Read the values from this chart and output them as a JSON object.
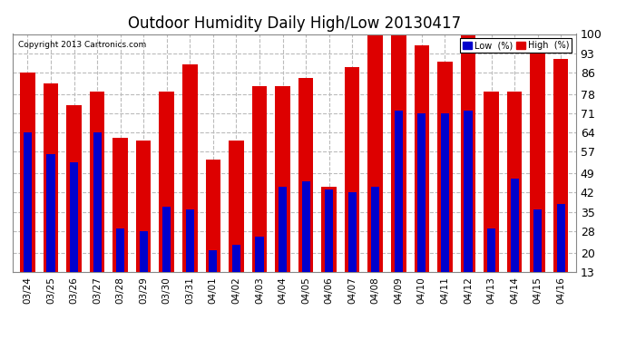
{
  "title": "Outdoor Humidity Daily High/Low 20130417",
  "copyright": "Copyright 2013 Cartronics.com",
  "labels": [
    "03/24",
    "03/25",
    "03/26",
    "03/27",
    "03/28",
    "03/29",
    "03/30",
    "03/31",
    "04/01",
    "04/02",
    "04/03",
    "04/04",
    "04/05",
    "04/06",
    "04/07",
    "04/08",
    "04/09",
    "04/10",
    "04/11",
    "04/12",
    "04/13",
    "04/14",
    "04/15",
    "04/16"
  ],
  "high": [
    86,
    82,
    74,
    79,
    62,
    61,
    79,
    89,
    54,
    61,
    81,
    81,
    84,
    44,
    88,
    100,
    100,
    96,
    90,
    100,
    79,
    79,
    93,
    91
  ],
  "low": [
    64,
    56,
    53,
    64,
    29,
    28,
    37,
    36,
    21,
    23,
    26,
    44,
    46,
    43,
    42,
    44,
    72,
    71,
    71,
    72,
    29,
    47,
    36,
    38
  ],
  "ylim": [
    13,
    100
  ],
  "yticks": [
    13,
    20,
    28,
    35,
    42,
    49,
    57,
    64,
    71,
    78,
    86,
    93,
    100
  ],
  "bar_color_low": "#0000cc",
  "bar_color_high": "#dd0000",
  "bg_color": "#ffffff",
  "grid_color": "#bbbbbb",
  "title_fontsize": 12,
  "legend_low_label": "Low  (%)",
  "legend_high_label": "High  (%)"
}
